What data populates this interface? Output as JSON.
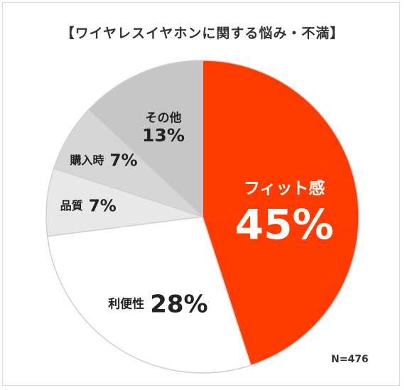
{
  "chart_data": {
    "type": "pie",
    "title": "【ワイヤレスイヤホンに関する悩み・不満】",
    "note": "N=476",
    "slices": [
      {
        "label": "フィット感",
        "value": 45,
        "value_text": "45%",
        "color": "#ff3b00"
      },
      {
        "label": "利便性",
        "value": 28,
        "value_text": "28%",
        "color": "#ffffff"
      },
      {
        "label": "品質",
        "value": 7,
        "value_text": "7%",
        "color": "#e8e8e8"
      },
      {
        "label": "購入時",
        "value": 7,
        "value_text": "7%",
        "color": "#d6d6d6"
      },
      {
        "label": "その他",
        "value": 13,
        "value_text": "13%",
        "color": "#c6c6c6"
      }
    ]
  }
}
